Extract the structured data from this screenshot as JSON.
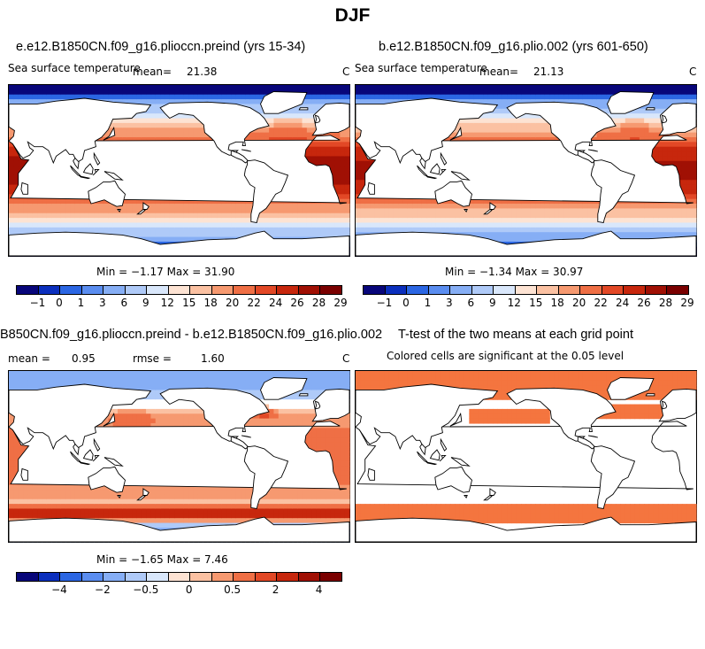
{
  "figure_title": "DJF",
  "panels": {
    "tl": {
      "title": "e.e12.B1850CN.f09_g16.plioccn.preind (yrs 15-34)",
      "left_label": "Sea surface temperature",
      "mean_label": "mean=",
      "mean_value": "21.38",
      "units": "C",
      "stats": "Min =  −1.17 Max =  31.90",
      "field": "sst-control"
    },
    "tr": {
      "title": "b.e12.B1850CN.f09_g16.plio.002 (yrs 601-650)",
      "left_label": "Sea surface temperature",
      "mean_label": "mean=",
      "mean_value": "21.13",
      "units": "C",
      "stats": "Min =  −1.34 Max =  30.97",
      "field": "sst-pliocene"
    },
    "bl": {
      "title": "B850CN.f09_g16.plioccn.preind - b.e12.B1850CN.f09_g16.plio.002",
      "mean_label": "mean =",
      "mean_value": "0.95",
      "rmse_label": "rmse =",
      "rmse_value": "1.60",
      "units": "C",
      "stats": "Min =  −1.65 Max =   7.46",
      "field": "sst-difference"
    },
    "br": {
      "title": "T-test of the two means at each grid point",
      "subtitle": "Colored cells are significant at the 0.05 level",
      "field": "significance"
    }
  },
  "colorbars": {
    "sst": {
      "colors": [
        "#08067a",
        "#0b2fbd",
        "#2b66e3",
        "#5a8df0",
        "#86aef5",
        "#afcaf8",
        "#d9e7fb",
        "#fde3d3",
        "#fbc1a2",
        "#f69970",
        "#ef6f45",
        "#e24826",
        "#c7270d",
        "#a01004",
        "#7a0000"
      ],
      "labels": [
        "−1",
        "0",
        "1",
        "3",
        "6",
        "9",
        "12",
        "15",
        "18",
        "20",
        "22",
        "24",
        "26",
        "28",
        "29"
      ]
    },
    "diff": {
      "colors": [
        "#08067a",
        "#0b2fbd",
        "#2b66e3",
        "#5a8df0",
        "#86aef5",
        "#afcaf8",
        "#d9e7fb",
        "#fde3d3",
        "#fbc1a2",
        "#f69970",
        "#ef6f45",
        "#e24826",
        "#c7270d",
        "#a01004",
        "#7a0000"
      ],
      "labels": [
        "−4",
        "−2",
        "−0.5",
        "0",
        "0.5",
        "2",
        "4"
      ]
    }
  },
  "significance_color": "#f4753f"
}
